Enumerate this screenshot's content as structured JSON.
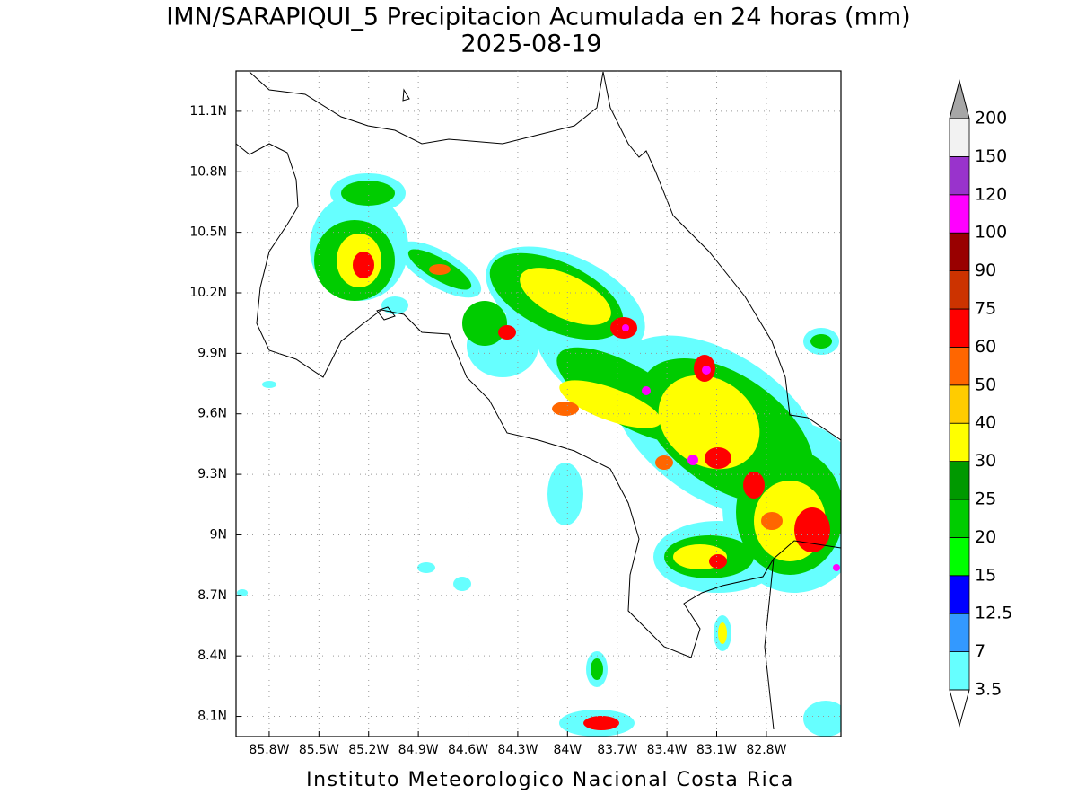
{
  "title": "IMN/SARAPIQUI_5 Precipitacion Acumulada en 24 horas (mm)",
  "date": "2025-08-19",
  "map": {
    "xlim": [
      -86.0,
      -82.35
    ],
    "ylim": [
      8.0,
      11.3
    ],
    "xticks": [
      {
        "value": -85.8,
        "label": "85.8W"
      },
      {
        "value": -85.5,
        "label": "85.5W"
      },
      {
        "value": -85.2,
        "label": "85.2W"
      },
      {
        "value": -84.9,
        "label": "84.9W"
      },
      {
        "value": -84.6,
        "label": "84.6W"
      },
      {
        "value": -84.3,
        "label": "84.3W"
      },
      {
        "value": -84.0,
        "label": "84W"
      },
      {
        "value": -83.7,
        "label": "83.7W"
      },
      {
        "value": -83.4,
        "label": "83.4W"
      },
      {
        "value": -83.1,
        "label": "83.1W"
      },
      {
        "value": -82.8,
        "label": "82.8W"
      }
    ],
    "yticks": [
      {
        "value": 11.1,
        "label": "11.1N"
      },
      {
        "value": 10.8,
        "label": "10.8N"
      },
      {
        "value": 10.5,
        "label": "10.5N"
      },
      {
        "value": 10.2,
        "label": "10.2N"
      },
      {
        "value": 9.9,
        "label": "9.9N"
      },
      {
        "value": 9.6,
        "label": "9.6N"
      },
      {
        "value": 9.3,
        "label": "9.3N"
      },
      {
        "value": 9.0,
        "label": "9N"
      },
      {
        "value": 8.7,
        "label": "8.7N"
      },
      {
        "value": 8.4,
        "label": "8.4N"
      },
      {
        "value": 8.1,
        "label": "8.1N"
      }
    ],
    "grid": true
  },
  "colorbar": {
    "levels": [
      3.5,
      7,
      12.5,
      15,
      20,
      25,
      30,
      40,
      50,
      60,
      75,
      90,
      100,
      120,
      150,
      200
    ],
    "colors": [
      "#66ffff",
      "#3399ff",
      "#0000ff",
      "#00ff00",
      "#00cc00",
      "#009900",
      "#ffff00",
      "#ffcc00",
      "#ff6600",
      "#ff0000",
      "#cc3300",
      "#990000",
      "#ff00ff",
      "#9933cc",
      "#f2f2f2"
    ],
    "under_color": "#ffffff",
    "over_color": "#a6a6a6"
  },
  "footer": "Instituto Meteorologico Nacional Costa Rica"
}
